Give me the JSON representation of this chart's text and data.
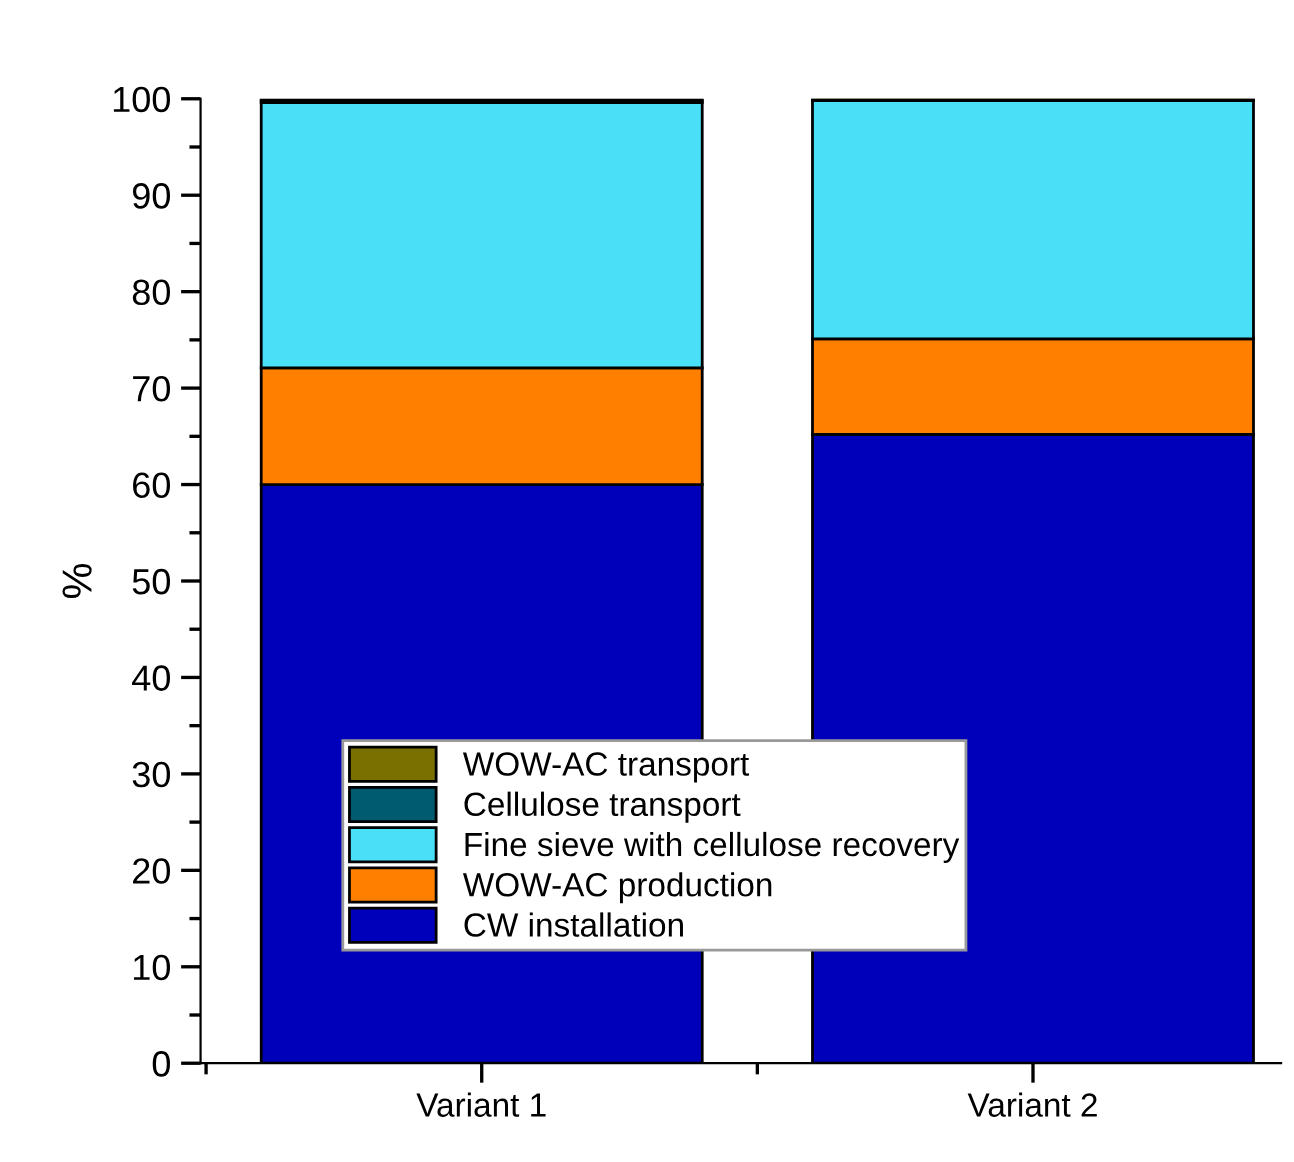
{
  "chart_data": {
    "type": "bar",
    "stacked": true,
    "ylabel": "%",
    "categories": [
      "Variant 1",
      "Variant 2"
    ],
    "series": [
      {
        "name": "CW installation",
        "color": "#0000bb",
        "values": [
          60.0,
          65.2
        ]
      },
      {
        "name": "WOW-AC production",
        "color": "#ff7f00",
        "values": [
          12.1,
          9.9
        ]
      },
      {
        "name": "Fine sieve with cellulose recovery",
        "color": "#48dff7",
        "values": [
          27.5,
          24.7
        ]
      },
      {
        "name": "Cellulose transport",
        "color": "#005a70",
        "values": [
          0.2,
          0.1
        ]
      },
      {
        "name": "WOW-AC transport",
        "color": "#7a7000",
        "values": [
          0.2,
          0.1
        ]
      }
    ],
    "ylim": [
      0,
      100
    ],
    "yticks": [
      0,
      10,
      20,
      30,
      40,
      50,
      60,
      70,
      80,
      90,
      100
    ],
    "grid": false,
    "legend": "bottom"
  }
}
